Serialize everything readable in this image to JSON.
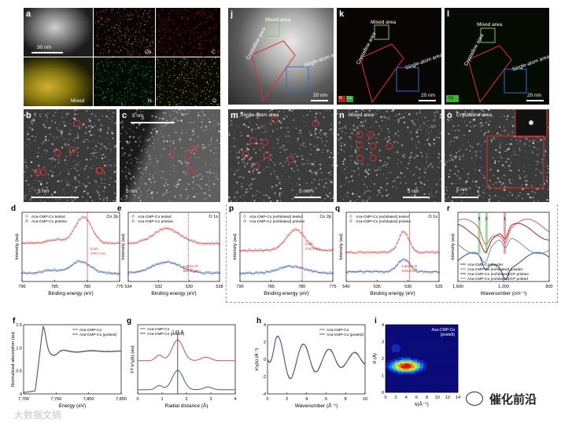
{
  "panels": {
    "a": {
      "letter": "a",
      "scale": "30 nm",
      "labels": [
        "Co",
        "C",
        "Mixed",
        "N",
        "O"
      ]
    },
    "b": {
      "letter": "b",
      "scale": "5 nm"
    },
    "c": {
      "letter": "c",
      "scale_top": "5 nm",
      "scale_bottom": "5 nm"
    },
    "j": {
      "letter": "j",
      "mixed": "Mixed area",
      "crystalline": "Crystalline area",
      "single": "Single-atom area",
      "scale": "20 nm"
    },
    "k": {
      "letter": "k",
      "mixed": "Mixed area",
      "crystalline": "Crystalline area",
      "single": "Single-atom area",
      "scale": "20 nm",
      "legend_n": "N",
      "legend_co": "Co"
    },
    "l": {
      "letter": "l",
      "mixed": "Mixed area",
      "crystalline": "Crystalline area",
      "single": "Single-atom area",
      "scale": "20 nm",
      "legend": "Co"
    },
    "m": {
      "letter": "m",
      "title": "Single-atom area",
      "scale": "5 nm"
    },
    "n": {
      "letter": "n",
      "title": "Mixed area",
      "scale": "5 nm"
    },
    "o": {
      "letter": "o",
      "title": "Crystalline area",
      "scale": "5 nm"
    }
  },
  "chart_data": [
    {
      "id": "d",
      "type": "line",
      "letter": "d",
      "title": "Co 2p",
      "xlabel": "Binding energy (eV)",
      "ylabel": "Intensity (au)",
      "xlim": [
        790,
        775
      ],
      "xticks": [
        "790",
        "785",
        "780",
        "775"
      ],
      "series": [
        {
          "name": "Aza-CMP-Co tested",
          "color": "#e05a5a"
        },
        {
          "name": "Aza-CMP-Co pristine",
          "color": "#4a6fb5"
        }
      ],
      "annotation": "CoO\n779.7 eV"
    },
    {
      "id": "e",
      "type": "line",
      "letter": "e",
      "title": "O 1s",
      "xlabel": "Binding energy (eV)",
      "ylabel": "Intensity (au)",
      "xlim": [
        535,
        527
      ],
      "xticks": [
        "534",
        "532",
        "530",
        "528"
      ],
      "series": [
        {
          "name": "Aza-CMP-Co tested",
          "color": "#e05a5a"
        },
        {
          "name": "Aza-CMP-Co pristine",
          "color": "#4a6fb5"
        }
      ],
      "annotation": "Lattice O\n529.8 eV"
    },
    {
      "id": "p",
      "type": "line",
      "letter": "p",
      "title": "Co 2p",
      "xlabel": "Binding energy (eV)",
      "ylabel": "Intensity (au)",
      "xlim": [
        790,
        775
      ],
      "xticks": [
        "790",
        "785",
        "780",
        "775"
      ],
      "series": [
        {
          "name": "Aza-CMP-Co (exfoliated) tested",
          "color": "#e05a5a"
        },
        {
          "name": "Aza-CMP-Co (exfoliated) pristine",
          "color": "#4a6fb5"
        }
      ],
      "annotation": "CoO\n779.7 eV"
    },
    {
      "id": "q",
      "type": "line",
      "letter": "q",
      "title": "O 1s",
      "xlabel": "Binding energy (eV)",
      "ylabel": "Intensity (au)",
      "xlim": [
        540,
        525
      ],
      "xticks": [
        "540",
        "535",
        "530",
        "525"
      ],
      "series": [
        {
          "name": "Aza-CMP-Co (exfoliated) tested",
          "color": "#e05a5a"
        },
        {
          "name": "Aza-CMP-Co (exfoliated) pristine",
          "color": "#4a6fb5"
        }
      ],
      "annotation": "Lattice O\n529.8 eV"
    },
    {
      "id": "r",
      "type": "line",
      "letter": "r",
      "xlabel": "Wavenumber (cm⁻¹)",
      "ylabel": "Intensity (au)",
      "xlim": [
        1900,
        700
      ],
      "xticks": [
        "1,600",
        "1,200",
        "800"
      ],
      "band_labels": [
        "3",
        "2",
        "1"
      ],
      "series": [
        {
          "name": "Aza-CMP-Co powder",
          "color": "#2b4a8a"
        },
        {
          "name": "Aza-CMP-Co (exfoliated) powder",
          "color": "#e05a5a"
        },
        {
          "name": "Aza-CMP-Co (exfoliated)/CP pristine",
          "color": "#b52222"
        },
        {
          "name": "Aza-CMP-Co (exfoliated)/CP posted",
          "color": "#6a8ad0"
        }
      ]
    },
    {
      "id": "f",
      "type": "line",
      "letter": "f",
      "xlabel": "Energy (eV)",
      "ylabel": "Normalized absorption (au)",
      "xlim": [
        7690,
        7870
      ],
      "xticks": [
        "7,700",
        "7,750",
        "7,800",
        "7,850"
      ],
      "yticks": [
        "0",
        "0.5",
        "1.0",
        "1.5"
      ],
      "series": [
        {
          "name": "Aza-CMP-Co",
          "color": "#d94848"
        },
        {
          "name": "Aza-CMP-Co (posted)",
          "color": "#3a5ea8"
        }
      ]
    },
    {
      "id": "g",
      "type": "line",
      "letter": "g",
      "xlabel": "Radial distance (Å)",
      "ylabel": "FT k²χ(k) (au)",
      "xlim": [
        0,
        4
      ],
      "xticks": [
        "0",
        "1",
        "2",
        "3",
        "4"
      ],
      "annotation": "1.65 Å",
      "series": [
        {
          "name": "Aza-CMP-Co",
          "color": "#d94848"
        },
        {
          "name": "Aza-CMP-Co (posted)",
          "color": "#3a5ea8"
        }
      ]
    },
    {
      "id": "h",
      "type": "line",
      "letter": "h",
      "xlabel": "Wavenumber (Å⁻¹)",
      "ylabel": "k²χ(k) (Å⁻²)",
      "xlim": [
        0,
        10
      ],
      "xticks": [
        "0",
        "2",
        "4",
        "6",
        "8",
        "10"
      ],
      "yticks": [
        "-4",
        "-2",
        "0",
        "2",
        "4"
      ],
      "series": [
        {
          "name": "Aza-CMP-Co",
          "color": "#d94848"
        },
        {
          "name": "Aza-CMP-Co (posted)",
          "color": "#3a5ea8"
        }
      ]
    },
    {
      "id": "i",
      "type": "heatmap",
      "letter": "i",
      "title": "Aza-CMP-Co\n(posted)",
      "xlabel": "k(Å⁻¹)",
      "ylabel": "R (Å)",
      "xlim": [
        0,
        14
      ],
      "ylim": [
        0,
        4
      ],
      "xticks": [
        "0",
        "2",
        "4",
        "6",
        "8",
        "10",
        "12",
        "14"
      ],
      "yticks": [
        "0",
        "1",
        "2",
        "3",
        "4"
      ]
    }
  ],
  "watermark_left": "大数据文摘",
  "watermark_right": "催化前沿"
}
